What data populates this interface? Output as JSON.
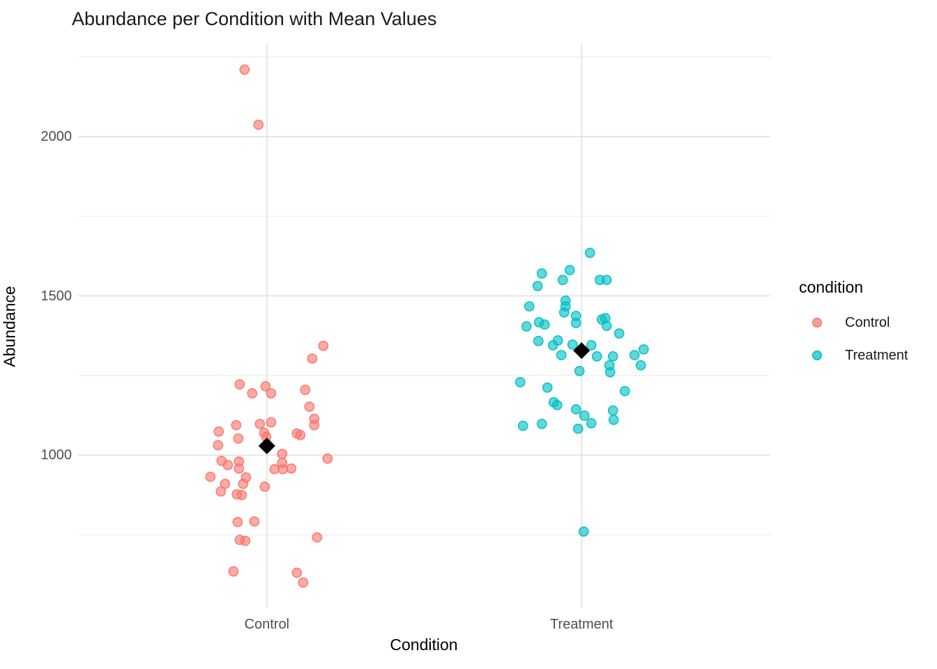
{
  "title": "Abundance per Condition with Mean Values",
  "chart_data": {
    "type": "scatter",
    "subtype": "jittered-points-by-category-with-mean-diamonds",
    "title": "Abundance per Condition with Mean Values",
    "xlabel": "Condition",
    "ylabel": "Abundance",
    "categories": [
      "Control",
      "Treatment"
    ],
    "ylim": [
      519,
      2293
    ],
    "y_major_ticks": [
      1000,
      1500,
      2000
    ],
    "y_minor_ticks": [
      750,
      1250,
      1750,
      2250
    ],
    "grid": true,
    "mean_marker_shape": "black-diamond",
    "mean_marker_color": "#000000",
    "legend": {
      "title": "condition",
      "position": "right",
      "entries": [
        {
          "label": "Control",
          "color": "#F8766D"
        },
        {
          "label": "Treatment",
          "color": "#00BFC4"
        }
      ]
    },
    "series": [
      {
        "name": "Control",
        "color": "#F8766D",
        "mean": 1029,
        "points": [
          [
            -32,
            2210
          ],
          [
            -12,
            2037
          ],
          [
            81,
            1343
          ],
          [
            65,
            1303
          ],
          [
            -39,
            1222
          ],
          [
            -2,
            1216
          ],
          [
            -21,
            1194
          ],
          [
            6,
            1194
          ],
          [
            55,
            1205
          ],
          [
            61,
            1152
          ],
          [
            68,
            1114
          ],
          [
            68,
            1094
          ],
          [
            -44,
            1094
          ],
          [
            -10,
            1098
          ],
          [
            6,
            1103
          ],
          [
            -69,
            1074
          ],
          [
            -4,
            1070
          ],
          [
            -1,
            1057
          ],
          [
            -41,
            1052
          ],
          [
            -70,
            1031
          ],
          [
            43,
            1068
          ],
          [
            48,
            1063
          ],
          [
            22,
            1004
          ],
          [
            87,
            989
          ],
          [
            -65,
            982
          ],
          [
            -40,
            980
          ],
          [
            -56,
            969
          ],
          [
            -40,
            958
          ],
          [
            22,
            976
          ],
          [
            11,
            956
          ],
          [
            23,
            956
          ],
          [
            35,
            958
          ],
          [
            -81,
            932
          ],
          [
            -30,
            930
          ],
          [
            -60,
            910
          ],
          [
            -34,
            910
          ],
          [
            -3,
            901
          ],
          [
            -66,
            886
          ],
          [
            -43,
            877
          ],
          [
            -36,
            875
          ],
          [
            -42,
            790
          ],
          [
            -18,
            792
          ],
          [
            72,
            742
          ],
          [
            -39,
            734
          ],
          [
            -31,
            731
          ],
          [
            -48,
            635
          ],
          [
            43,
            631
          ],
          [
            52,
            600
          ]
        ]
      },
      {
        "name": "Treatment",
        "color": "#00BFC4",
        "mean": 1328,
        "points": [
          [
            12,
            1635
          ],
          [
            -17,
            1581
          ],
          [
            -57,
            1570
          ],
          [
            -27,
            1550
          ],
          [
            26,
            1550
          ],
          [
            36,
            1550
          ],
          [
            -63,
            1531
          ],
          [
            -23,
            1485
          ],
          [
            -75,
            1467
          ],
          [
            -23,
            1467
          ],
          [
            -25,
            1448
          ],
          [
            -8,
            1437
          ],
          [
            29,
            1426
          ],
          [
            34,
            1430
          ],
          [
            -8,
            1415
          ],
          [
            -61,
            1417
          ],
          [
            -53,
            1410
          ],
          [
            36,
            1406
          ],
          [
            -79,
            1404
          ],
          [
            54,
            1382
          ],
          [
            -62,
            1358
          ],
          [
            -34,
            1360
          ],
          [
            -41,
            1345
          ],
          [
            -13,
            1347
          ],
          [
            14,
            1345
          ],
          [
            89,
            1332
          ],
          [
            -29,
            1314
          ],
          [
            22,
            1310
          ],
          [
            45,
            1310
          ],
          [
            76,
            1314
          ],
          [
            40,
            1282
          ],
          [
            85,
            1282
          ],
          [
            -3,
            1264
          ],
          [
            41,
            1260
          ],
          [
            -88,
            1229
          ],
          [
            -49,
            1212
          ],
          [
            62,
            1201
          ],
          [
            -40,
            1166
          ],
          [
            -35,
            1157
          ],
          [
            -8,
            1144
          ],
          [
            45,
            1140
          ],
          [
            4,
            1124
          ],
          [
            46,
            1111
          ],
          [
            14,
            1100
          ],
          [
            -84,
            1092
          ],
          [
            -57,
            1098
          ],
          [
            -5,
            1083
          ],
          [
            3,
            760
          ]
        ]
      }
    ],
    "style": {
      "point_fill_alpha": 0.62,
      "major_grid_color": "#e3e3e3",
      "minor_grid_color": "#ebebeb",
      "tick_label_color": "#4d4d4d"
    }
  }
}
